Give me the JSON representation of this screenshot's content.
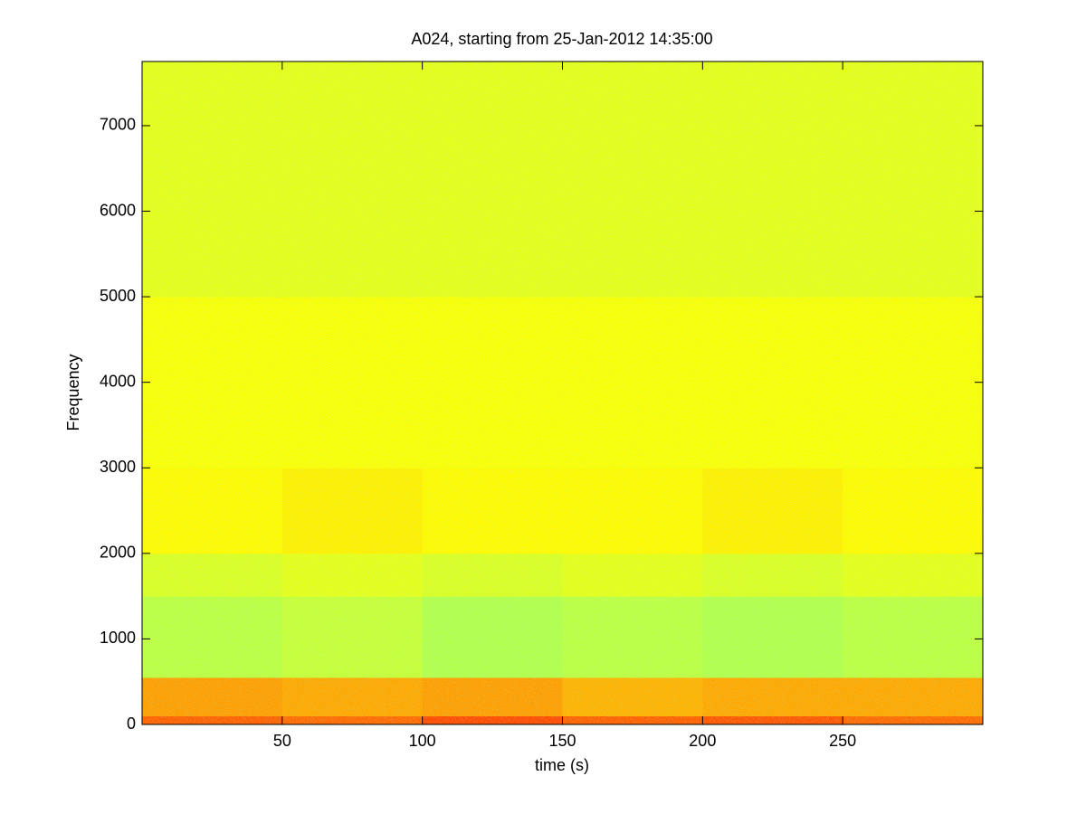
{
  "chart_data": {
    "type": "heatmap",
    "title": "A024, starting from 25-Jan-2012 14:35:00",
    "xlabel": "time (s)",
    "ylabel": "Frequency",
    "xlim": [
      0,
      300
    ],
    "ylim": [
      0,
      7750
    ],
    "xticks": [
      50,
      100,
      150,
      200,
      250
    ],
    "yticks": [
      0,
      1000,
      2000,
      3000,
      4000,
      5000,
      6000,
      7000
    ],
    "colormap": "jet",
    "clim": [
      0,
      1
    ],
    "xbins": [
      0,
      50,
      100,
      150,
      200,
      250,
      300
    ],
    "ybins": [
      0,
      100,
      550,
      1500,
      2000,
      3000,
      5000,
      7750
    ],
    "values": [
      [
        0.78,
        0.77,
        0.8,
        0.78,
        0.79,
        0.77
      ],
      [
        0.72,
        0.71,
        0.72,
        0.7,
        0.71,
        0.71
      ],
      [
        0.56,
        0.57,
        0.55,
        0.56,
        0.55,
        0.56
      ],
      [
        0.59,
        0.6,
        0.59,
        0.6,
        0.59,
        0.6
      ],
      [
        0.63,
        0.64,
        0.63,
        0.63,
        0.64,
        0.63
      ],
      [
        0.62,
        0.62,
        0.62,
        0.62,
        0.62,
        0.62
      ],
      [
        0.6,
        0.6,
        0.6,
        0.6,
        0.6,
        0.6
      ]
    ]
  }
}
